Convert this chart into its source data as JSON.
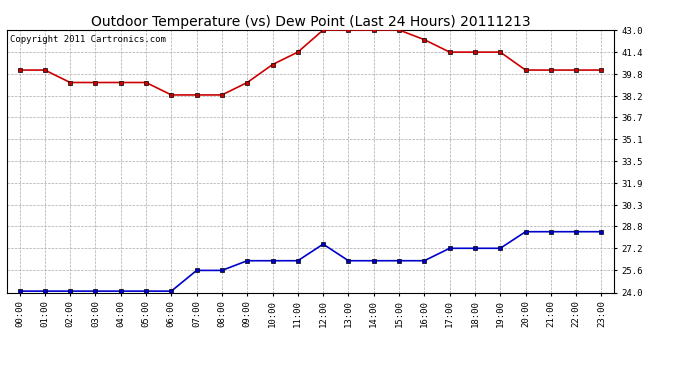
{
  "title": "Outdoor Temperature (vs) Dew Point (Last 24 Hours) 20111213",
  "copyright_text": "Copyright 2011 Cartronics.com",
  "x_labels": [
    "00:00",
    "01:00",
    "02:00",
    "03:00",
    "04:00",
    "05:00",
    "06:00",
    "07:00",
    "08:00",
    "09:00",
    "10:00",
    "11:00",
    "12:00",
    "13:00",
    "14:00",
    "15:00",
    "16:00",
    "17:00",
    "18:00",
    "19:00",
    "20:00",
    "21:00",
    "22:00",
    "23:00"
  ],
  "temp_data": [
    40.1,
    40.1,
    39.2,
    39.2,
    39.2,
    39.2,
    38.3,
    38.3,
    38.3,
    39.2,
    40.5,
    41.4,
    43.0,
    43.0,
    43.0,
    43.0,
    42.3,
    41.4,
    41.4,
    41.4,
    40.1,
    40.1,
    40.1,
    40.1
  ],
  "dew_data": [
    24.1,
    24.1,
    24.1,
    24.1,
    24.1,
    24.1,
    24.1,
    25.6,
    25.6,
    26.3,
    26.3,
    26.3,
    27.5,
    26.3,
    26.3,
    26.3,
    26.3,
    27.2,
    27.2,
    27.2,
    28.4,
    28.4,
    28.4,
    28.4
  ],
  "temp_color": "#cc0000",
  "dew_color": "#0000cc",
  "background_color": "#ffffff",
  "grid_color": "#aaaaaa",
  "ylim_min": 24.0,
  "ylim_max": 43.0,
  "yticks": [
    24.0,
    25.6,
    27.2,
    28.8,
    30.3,
    31.9,
    33.5,
    35.1,
    36.7,
    38.2,
    39.8,
    41.4,
    43.0
  ],
  "title_fontsize": 10,
  "tick_fontsize": 6.5,
  "copyright_fontsize": 6.5,
  "line_width": 1.2,
  "marker": "s",
  "marker_size": 2.5
}
